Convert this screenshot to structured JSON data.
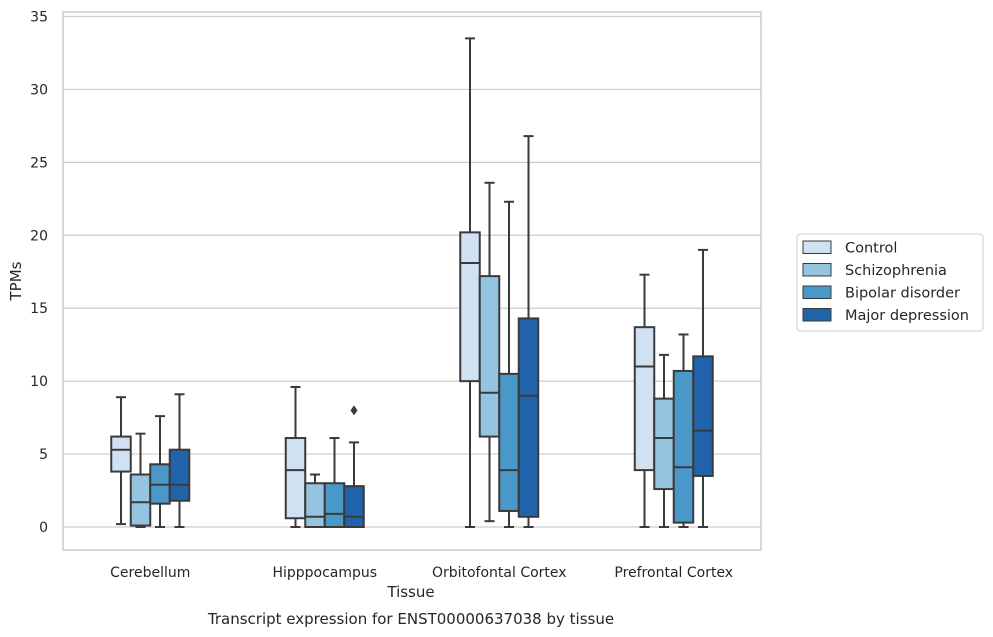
{
  "chart_data": {
    "type": "box",
    "title": "Transcript expression for ENST00000637038 by tissue",
    "xlabel": "Tissue",
    "ylabel": "TPMs",
    "ylim": [
      -1.6,
      35.3
    ],
    "yticks": [
      0,
      5,
      10,
      15,
      20,
      25,
      30,
      35
    ],
    "grid": true,
    "legend_position": "right",
    "categories": [
      "Cerebellum",
      "Hipppocampus",
      "Orbitofontal Cortex",
      "Prefrontal Cortex"
    ],
    "series": [
      {
        "name": "Control",
        "color": "#d0e1f2",
        "boxes": [
          {
            "whislo": 0.2,
            "q1": 3.8,
            "med": 5.3,
            "q3": 6.2,
            "whishi": 8.9,
            "fliers": []
          },
          {
            "whislo": 0.0,
            "q1": 0.6,
            "med": 3.9,
            "q3": 6.1,
            "whishi": 9.6,
            "fliers": []
          },
          {
            "whislo": 0.0,
            "q1": 10.0,
            "med": 18.1,
            "q3": 20.2,
            "whishi": 33.5,
            "fliers": []
          },
          {
            "whislo": 0.0,
            "q1": 3.9,
            "med": 11.0,
            "q3": 13.7,
            "whishi": 17.3,
            "fliers": []
          }
        ]
      },
      {
        "name": "Schizophrenia",
        "color": "#94c4df",
        "boxes": [
          {
            "whislo": 0.0,
            "q1": 0.1,
            "med": 1.7,
            "q3": 3.6,
            "whishi": 6.4,
            "fliers": []
          },
          {
            "whislo": 0.0,
            "q1": 0.0,
            "med": 0.7,
            "q3": 3.0,
            "whishi": 3.6,
            "fliers": []
          },
          {
            "whislo": 0.4,
            "q1": 6.2,
            "med": 9.2,
            "q3": 17.2,
            "whishi": 23.6,
            "fliers": []
          },
          {
            "whislo": 0.0,
            "q1": 2.6,
            "med": 6.1,
            "q3": 8.8,
            "whishi": 11.8,
            "fliers": []
          }
        ]
      },
      {
        "name": "Bipolar disorder",
        "color": "#4a98c9",
        "boxes": [
          {
            "whislo": 0.0,
            "q1": 1.6,
            "med": 2.9,
            "q3": 4.3,
            "whishi": 7.6,
            "fliers": []
          },
          {
            "whislo": 0.0,
            "q1": 0.0,
            "med": 0.9,
            "q3": 3.0,
            "whishi": 6.1,
            "fliers": []
          },
          {
            "whislo": 0.0,
            "q1": 1.1,
            "med": 3.9,
            "q3": 10.5,
            "whishi": 22.3,
            "fliers": []
          },
          {
            "whislo": 0.0,
            "q1": 0.3,
            "med": 4.1,
            "q3": 10.7,
            "whishi": 13.2,
            "fliers": []
          }
        ]
      },
      {
        "name": "Major depression",
        "color": "#2163aa",
        "boxes": [
          {
            "whislo": 0.0,
            "q1": 1.8,
            "med": 2.9,
            "q3": 5.3,
            "whishi": 9.1,
            "fliers": []
          },
          {
            "whislo": 0.0,
            "q1": 0.0,
            "med": 0.7,
            "q3": 2.8,
            "whishi": 5.8,
            "fliers": [
              8.0
            ]
          },
          {
            "whislo": 0.0,
            "q1": 0.7,
            "med": 9.0,
            "q3": 14.3,
            "whishi": 26.8,
            "fliers": []
          },
          {
            "whislo": 0.0,
            "q1": 3.5,
            "med": 6.6,
            "q3": 11.7,
            "whishi": 19.0,
            "fliers": []
          }
        ]
      }
    ]
  }
}
